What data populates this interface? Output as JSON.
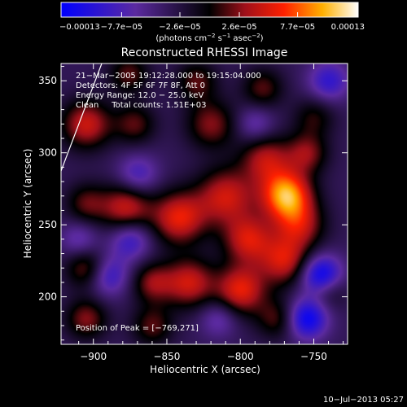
{
  "chart_data": {
    "type": "heatmap",
    "title": "Reconstructed RHESSI Image",
    "xlabel": "Heliocentric X (arcsec)",
    "ylabel": "Heliocentric Y (arcsec)",
    "xlim": [
      -922,
      -727
    ],
    "ylim": [
      167,
      362
    ],
    "x_ticks": [
      -900,
      -850,
      -800,
      -750
    ],
    "x_tick_labels": [
      "−900",
      "−850",
      "−800",
      "−750"
    ],
    "y_ticks": [
      200,
      250,
      300,
      350
    ],
    "y_tick_labels": [
      "200",
      "250",
      "300",
      "350"
    ],
    "colorbar": {
      "min": -0.00013,
      "max": 0.00013,
      "ticks": [
        -0.00013,
        -7.7e-05,
        -2.6e-05,
        2.6e-05,
        7.7e-05,
        0.00013
      ],
      "tick_labels": [
        "−0.00013",
        "−7.7e−05",
        "−2.6e−05",
        "2.6e−05",
        "7.7e−05",
        "0.00013"
      ],
      "units_main": "(photons cm",
      "units_exp1": "−2",
      "units_mid": " s",
      "units_exp2": "−1",
      "units_after": " asec",
      "units_exp3": "−2",
      "units_close": ")"
    },
    "info": [
      "21−Mar−2005 19:12:28.000 to 19:15:04.000",
      "Detectors: 4F 5F 6F 7F 8F, Att 0",
      "Energy Range: 12.0 − 25.0 keV",
      "Clean     Total counts: 1.51E+03"
    ],
    "peak_label": "Position of Peak = [−769,271]",
    "peak": [
      -769,
      271
    ],
    "blobs": [
      {
        "x": -769,
        "y": 271,
        "v": 0.00013,
        "s": 12
      },
      {
        "x": -783,
        "y": 296,
        "v": 7e-05,
        "s": 12
      },
      {
        "x": -755,
        "y": 300,
        "v": 6e-05,
        "s": 10
      },
      {
        "x": -810,
        "y": 270,
        "v": 8e-05,
        "s": 14
      },
      {
        "x": -842,
        "y": 255,
        "v": 9e-05,
        "s": 13
      },
      {
        "x": -878,
        "y": 262,
        "v": 8e-05,
        "s": 12
      },
      {
        "x": -905,
        "y": 265,
        "v": 5e-05,
        "s": 10
      },
      {
        "x": -905,
        "y": 320,
        "v": 8e-05,
        "s": 12
      },
      {
        "x": -872,
        "y": 320,
        "v": 5e-05,
        "s": 10
      },
      {
        "x": -820,
        "y": 320,
        "v": 6e-05,
        "s": 12
      },
      {
        "x": -876,
        "y": 355,
        "v": 5e-05,
        "s": 10
      },
      {
        "x": -830,
        "y": 350,
        "v": 5e-05,
        "s": 10
      },
      {
        "x": -785,
        "y": 345,
        "v": 5e-05,
        "s": 10
      },
      {
        "x": -750,
        "y": 325,
        "v": 4e-05,
        "s": 10
      },
      {
        "x": -835,
        "y": 210,
        "v": 8e-05,
        "s": 12
      },
      {
        "x": -800,
        "y": 205,
        "v": 9e-05,
        "s": 12
      },
      {
        "x": -770,
        "y": 225,
        "v": 8e-05,
        "s": 12
      },
      {
        "x": -760,
        "y": 250,
        "v": 7e-05,
        "s": 12
      },
      {
        "x": -795,
        "y": 240,
        "v": 8e-05,
        "s": 12
      },
      {
        "x": -860,
        "y": 210,
        "v": 6e-05,
        "s": 10
      },
      {
        "x": -905,
        "y": 220,
        "v": 6e-05,
        "s": 10
      },
      {
        "x": -905,
        "y": 185,
        "v": 6e-05,
        "s": 10
      },
      {
        "x": -860,
        "y": 180,
        "v": 5e-05,
        "s": 10
      },
      {
        "x": -775,
        "y": 185,
        "v": 5e-05,
        "s": 10
      },
      {
        "x": -740,
        "y": 205,
        "v": 4e-05,
        "s": 9
      },
      {
        "x": -870,
        "y": 285,
        "v": -5e-05,
        "s": 10
      },
      {
        "x": -875,
        "y": 240,
        "v": -6e-05,
        "s": 10
      },
      {
        "x": -910,
        "y": 240,
        "v": -4e-05,
        "s": 9
      },
      {
        "x": -890,
        "y": 215,
        "v": -6e-05,
        "s": 10
      },
      {
        "x": -745,
        "y": 215,
        "v": -0.0001,
        "s": 10
      },
      {
        "x": -755,
        "y": 185,
        "v": -9e-05,
        "s": 10
      },
      {
        "x": -740,
        "y": 350,
        "v": -6e-05,
        "s": 10
      },
      {
        "x": -815,
        "y": 185,
        "v": -4e-05,
        "s": 9
      },
      {
        "x": -790,
        "y": 320,
        "v": -4e-05,
        "s": 9
      }
    ]
  },
  "footer": {
    "timestamp": "10−Jul−2013 05:27"
  },
  "colors": {
    "background": "#000000",
    "text": "#ffffff"
  }
}
